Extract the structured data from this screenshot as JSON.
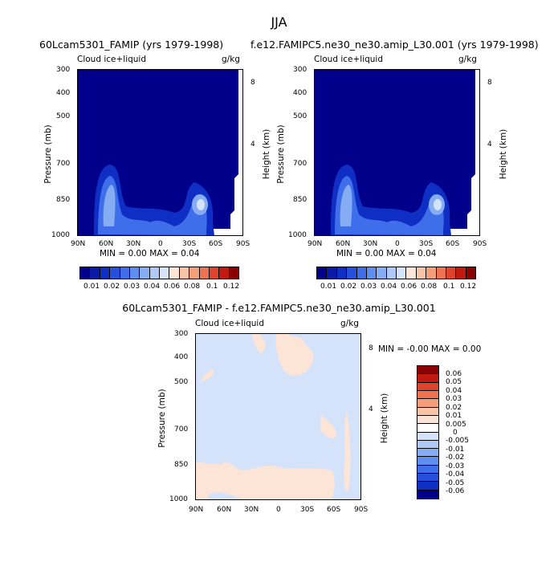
{
  "title": "JJA",
  "panels": [
    {
      "title": "60Lcam5301_FAMIP (yrs 1979-1998)",
      "var": "Cloud ice+liquid",
      "units": "g/kg",
      "minmax": "MIN =   0.00   MAX =   0.04"
    },
    {
      "title": "f.e12.FAMIPC5.ne30_ne30.amip_L30.001 (yrs 1979-1998)",
      "var": "Cloud ice+liquid",
      "units": "g/kg",
      "minmax": "MIN =   0.00   MAX =   0.04"
    }
  ],
  "diff": {
    "title": "60Lcam5301_FAMIP - f.e12.FAMIPC5.ne30_ne30.amip_L30.001",
    "var": "Cloud ice+liquid",
    "units": "g/kg",
    "minmax": "MIN =  -0.00   MAX =   0.00"
  },
  "axes": {
    "ylabel": "Pressure (mb)",
    "y2label": "Height (km)",
    "yticks": [
      "300",
      "400",
      "500",
      "700",
      "850",
      "1000"
    ],
    "xticks": [
      "90N",
      "60N",
      "30N",
      "0",
      "30S",
      "60S",
      "90S"
    ],
    "height_ticks": [
      "8",
      "4"
    ]
  },
  "colorbar_top": {
    "labels": [
      "0.01",
      "0.02",
      "0.03",
      "0.04",
      "0.06",
      "0.08",
      "0.1",
      "0.12"
    ],
    "colors": [
      "#00008b",
      "#0a1aa6",
      "#0f2fc4",
      "#2650dc",
      "#3e6ee9",
      "#5e8ef0",
      "#86acf4",
      "#afc8f6",
      "#d4e3fa",
      "#fce4d6",
      "#f9c3a8",
      "#f59f7a",
      "#ef7350",
      "#e0432c",
      "#c01a10",
      "#8b0000"
    ]
  },
  "colorbar_diff": {
    "labels": [
      "0.06",
      "0.05",
      "0.04",
      "0.03",
      "0.02",
      "0.01",
      "0.005",
      "0",
      "-0.005",
      "-0.01",
      "-0.02",
      "-0.03",
      "-0.04",
      "-0.05",
      "-0.06"
    ],
    "colors": [
      "#8b0000",
      "#c01a10",
      "#e0432c",
      "#ef7350",
      "#f59f7a",
      "#f9c3a8",
      "#fce4d6",
      "#ffffff",
      "#d4e3fa",
      "#afc8f6",
      "#86acf4",
      "#5e8ef0",
      "#3e6ee9",
      "#2650dc",
      "#0f2fc4",
      "#00008b"
    ]
  },
  "chart_data": [
    {
      "type": "heatmap",
      "title": "60Lcam5301_FAMIP (yrs 1979-1998)",
      "subtitle": "Cloud ice+liquid",
      "units": "g/kg",
      "xlabel": "",
      "ylabel": "Pressure (mb)",
      "y2label": "Height (km)",
      "x": [
        "90N",
        "60N",
        "30N",
        "0",
        "30S",
        "60S",
        "90S"
      ],
      "y": [
        300,
        400,
        500,
        700,
        850,
        1000
      ],
      "min": 0.0,
      "max": 0.04,
      "features": [
        {
          "lat": "60N",
          "p": 850,
          "value": 0.03
        },
        {
          "lat": "45S",
          "p": 850,
          "value": 0.04
        },
        {
          "lat": "0",
          "p": 930,
          "value": 0.01
        }
      ]
    },
    {
      "type": "heatmap",
      "title": "f.e12.FAMIPC5.ne30_ne30.amip_L30.001 (yrs 1979-1998)",
      "subtitle": "Cloud ice+liquid",
      "units": "g/kg",
      "xlabel": "",
      "ylabel": "Pressure (mb)",
      "y2label": "Height (km)",
      "x": [
        "90N",
        "60N",
        "30N",
        "0",
        "30S",
        "60S",
        "90S"
      ],
      "y": [
        300,
        400,
        500,
        700,
        850,
        1000
      ],
      "min": 0.0,
      "max": 0.04,
      "features": [
        {
          "lat": "60N",
          "p": 850,
          "value": 0.03
        },
        {
          "lat": "45S",
          "p": 850,
          "value": 0.04
        },
        {
          "lat": "0",
          "p": 930,
          "value": 0.01
        }
      ]
    },
    {
      "type": "heatmap",
      "title": "60Lcam5301_FAMIP - f.e12.FAMIPC5.ne30_ne30.amip_L30.001",
      "subtitle": "Cloud ice+liquid",
      "units": "g/kg",
      "xlabel": "",
      "ylabel": "Pressure (mb)",
      "y2label": "Height (km)",
      "x": [
        "90N",
        "60N",
        "30N",
        "0",
        "30S",
        "60S",
        "90S"
      ],
      "y": [
        300,
        400,
        500,
        700,
        850,
        1000
      ],
      "min": -0.0,
      "max": 0.0,
      "background_value": -0.005,
      "features": [
        {
          "lat": "5S",
          "p": 330,
          "value": 0.005
        },
        {
          "lat": "30S",
          "p": 700,
          "value": 0.005
        },
        {
          "lat": "75N",
          "p": 900,
          "value": 0.005
        }
      ]
    }
  ]
}
